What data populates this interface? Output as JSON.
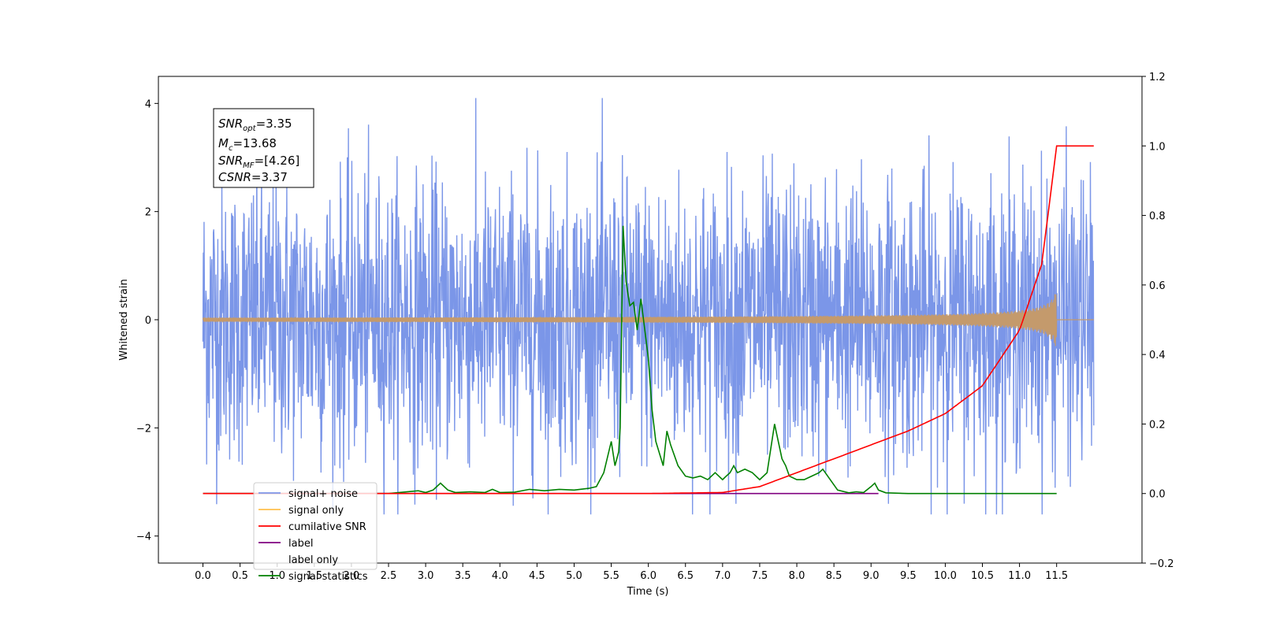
{
  "chart_data": {
    "type": "line",
    "xlabel": "Time (s)",
    "ylabel_left": "Whitened strain",
    "ylabel_right": "",
    "xlim": [
      -0.6,
      12.65
    ],
    "ylim_left": [
      -4.5,
      4.5
    ],
    "ylim_right": [
      -0.2,
      1.2
    ],
    "x_ticks": [
      "0.0",
      "0.5",
      "1.0",
      "1.5",
      "2.0",
      "2.5",
      "3.0",
      "3.5",
      "4.0",
      "4.5",
      "5.0",
      "5.5",
      "6.0",
      "6.5",
      "7.0",
      "7.5",
      "8.0",
      "8.5",
      "9.0",
      "9.5",
      "10.0",
      "10.5",
      "11.0",
      "11.5"
    ],
    "y_left_ticks": [
      "4",
      "2",
      "0",
      "−2",
      "−4"
    ],
    "y_right_ticks": [
      "1.2",
      "1.0",
      "0.8",
      "0.6",
      "0.4",
      "0.2",
      "0.0",
      "−0.2"
    ],
    "stats": {
      "snr_opt": "SNR",
      "snr_opt_sub": "opt",
      "snr_opt_val": "=3.35",
      "mc": "M",
      "mc_sub": "c",
      "mc_val": "=13.68",
      "snr_mf": "SNR",
      "snr_mf_sub": "MF",
      "snr_mf_val": "=[4.26]",
      "csnr": "CSNR",
      "csnr_val": "=3.37"
    },
    "series": [
      {
        "name": "signal+ noise",
        "color": "#7b96e8",
        "axis": "left",
        "description_amplitude": 1.3,
        "x_range": [
          0.0,
          12.0
        ]
      },
      {
        "name": "signal only",
        "color": "#ffa500",
        "axis": "left",
        "x_range": [
          0.0,
          12.0
        ],
        "chirp_peak_x": 11.5,
        "chirp_peak_amp": 0.5
      },
      {
        "name": "cumilative SNR",
        "color": "#ff0000",
        "axis": "right",
        "x": [
          0.0,
          6.0,
          7.0,
          7.5,
          8.0,
          8.5,
          9.0,
          9.5,
          10.0,
          10.5,
          11.0,
          11.3,
          11.5,
          12.0
        ],
        "values": [
          0.0,
          0.0,
          0.003,
          0.02,
          0.06,
          0.1,
          0.14,
          0.18,
          0.23,
          0.31,
          0.47,
          0.66,
          1.0,
          1.0
        ]
      },
      {
        "name": "label",
        "color": "#800080",
        "axis": "right",
        "x": [
          0.0,
          9.1
        ],
        "values": [
          0.0,
          0.0
        ]
      },
      {
        "name": "label only",
        "color": "#ffffff",
        "axis": "right",
        "x": [],
        "values": []
      },
      {
        "name": "signal statistics",
        "color": "#008000",
        "axis": "right",
        "x": [
          0.0,
          0.5,
          1.0,
          1.5,
          2.0,
          2.5,
          2.7,
          2.9,
          3.0,
          3.1,
          3.2,
          3.3,
          3.4,
          3.6,
          3.8,
          3.9,
          4.0,
          4.2,
          4.4,
          4.6,
          4.8,
          5.0,
          5.2,
          5.3,
          5.4,
          5.5,
          5.55,
          5.6,
          5.62,
          5.66,
          5.7,
          5.75,
          5.8,
          5.85,
          5.9,
          6.0,
          6.05,
          6.1,
          6.2,
          6.25,
          6.3,
          6.4,
          6.5,
          6.6,
          6.7,
          6.8,
          6.9,
          7.0,
          7.05,
          7.1,
          7.15,
          7.2,
          7.3,
          7.4,
          7.5,
          7.6,
          7.7,
          7.8,
          7.85,
          7.9,
          8.0,
          8.1,
          8.2,
          8.3,
          8.35,
          8.45,
          8.55,
          8.7,
          8.8,
          8.9,
          9.0,
          9.05,
          9.1,
          9.2,
          9.5,
          10.0,
          11.0,
          11.5
        ],
        "values": [
          0.0,
          0.0,
          0.0,
          0.0,
          0.0,
          0.0,
          0.004,
          0.008,
          0.003,
          0.01,
          0.03,
          0.01,
          0.003,
          0.005,
          0.003,
          0.012,
          0.003,
          0.004,
          0.012,
          0.008,
          0.012,
          0.01,
          0.015,
          0.02,
          0.06,
          0.15,
          0.08,
          0.12,
          0.19,
          0.77,
          0.61,
          0.54,
          0.55,
          0.47,
          0.56,
          0.39,
          0.24,
          0.15,
          0.08,
          0.18,
          0.14,
          0.08,
          0.05,
          0.045,
          0.05,
          0.04,
          0.06,
          0.04,
          0.05,
          0.06,
          0.08,
          0.06,
          0.07,
          0.06,
          0.04,
          0.06,
          0.2,
          0.1,
          0.08,
          0.05,
          0.04,
          0.04,
          0.05,
          0.06,
          0.07,
          0.04,
          0.01,
          0.002,
          0.005,
          0.003,
          0.02,
          0.03,
          0.01,
          0.002,
          0.0,
          0.0,
          0.0,
          0.0
        ]
      }
    ],
    "legend": {
      "placement": "lower-left",
      "items": [
        "signal+ noise",
        "signal only",
        "cumilative SNR",
        "label",
        "label only",
        "signal statistics"
      ],
      "colors": [
        "#7b96e8",
        "#ffc04d",
        "#ff0000",
        "#800080",
        "#ffffff",
        "#008000"
      ]
    },
    "grid": false
  }
}
